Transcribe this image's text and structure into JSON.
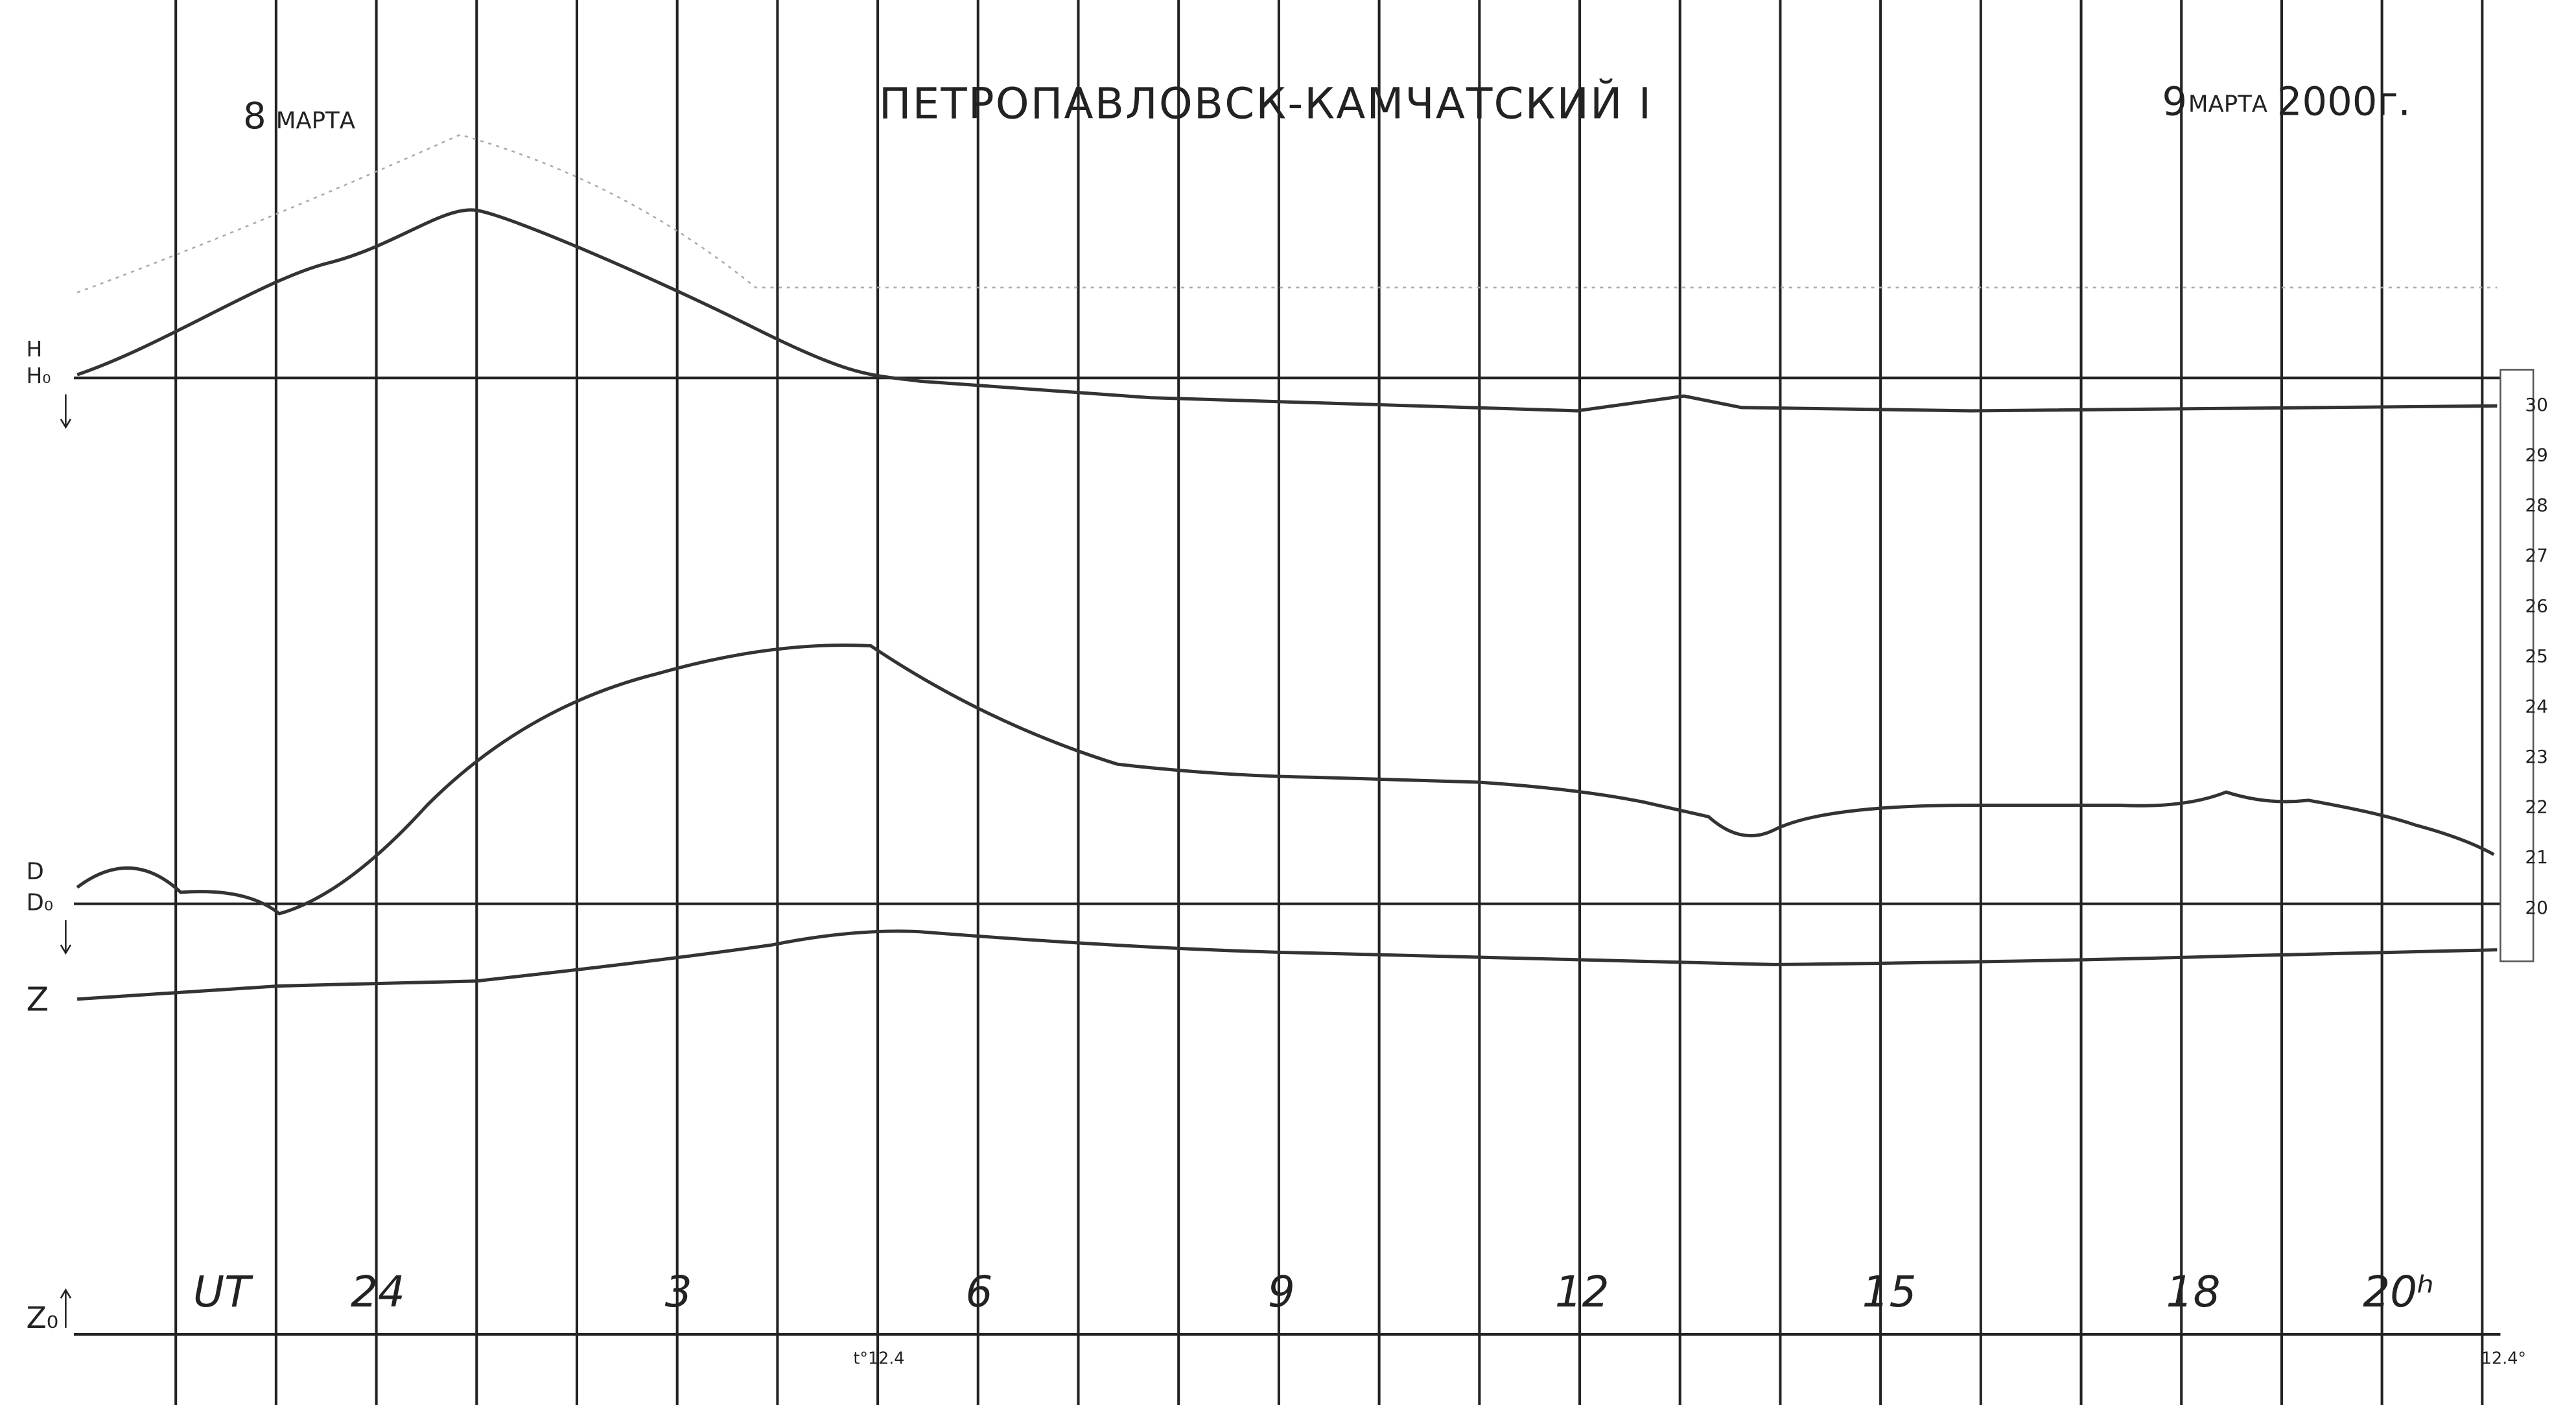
{
  "header": {
    "date_left_day": "8",
    "date_left_month": "МАРТА",
    "title": "ПЕТРОПАВЛОВСК-КАМЧАТСКИЙ I",
    "date_right_day": "9",
    "date_right_month": "МАРТА",
    "date_right_year": "2000г."
  },
  "axis_labels": {
    "h": "H",
    "h0": "H₀",
    "d": "D",
    "d0": "D₀",
    "z": "Z",
    "z0": "Z₀"
  },
  "time_labels": [
    "UT",
    "24",
    "3",
    "6",
    "9",
    "12",
    "15",
    "18",
    "20ʰ"
  ],
  "temperature_labels": [
    "t°12.4",
    "12.4°"
  ],
  "scale_labels": [
    "30",
    "29",
    "28",
    "27",
    "26",
    "25",
    "24",
    "23",
    "22",
    "21",
    "20"
  ]
}
